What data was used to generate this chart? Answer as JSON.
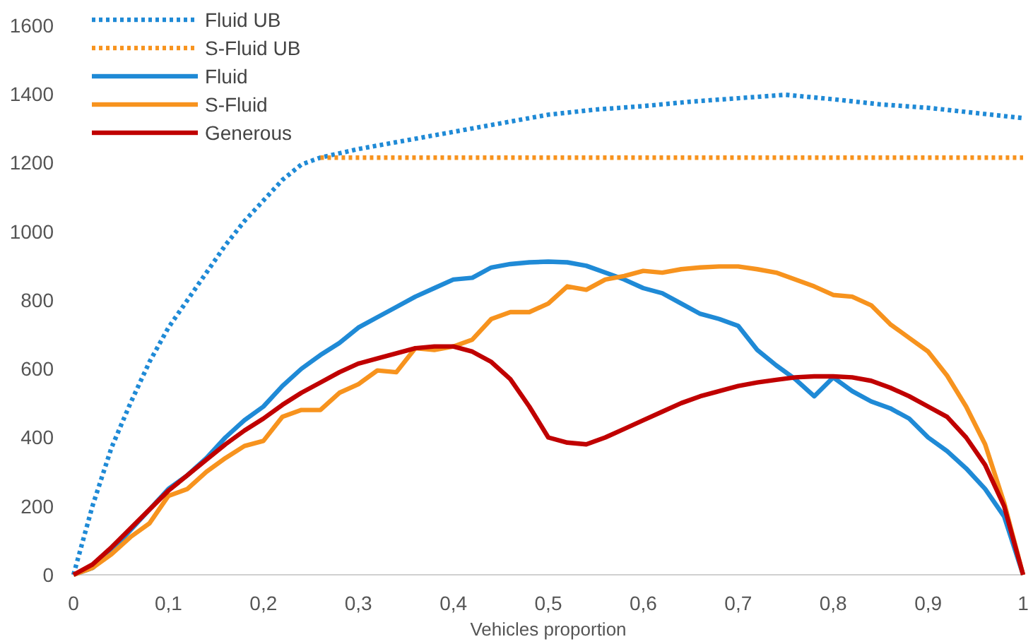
{
  "chart_data": {
    "type": "line",
    "xlabel": "Vehicles proportion",
    "x": [
      0,
      0.02,
      0.04,
      0.06,
      0.08,
      0.1,
      0.12,
      0.14,
      0.16,
      0.18,
      0.2,
      0.22,
      0.24,
      0.26,
      0.28,
      0.3,
      0.32,
      0.34,
      0.36,
      0.38,
      0.4,
      0.42,
      0.44,
      0.46,
      0.48,
      0.5,
      0.52,
      0.54,
      0.56,
      0.58,
      0.6,
      0.62,
      0.64,
      0.66,
      0.68,
      0.7,
      0.72,
      0.74,
      0.76,
      0.78,
      0.8,
      0.82,
      0.84,
      0.86,
      0.88,
      0.9,
      0.92,
      0.94,
      0.96,
      0.98,
      1
    ],
    "series": [
      {
        "name": "Fluid UB",
        "color": "#1f8ad6",
        "line_style": "dotted",
        "x": [
          0,
          0.02,
          0.04,
          0.06,
          0.08,
          0.1,
          0.12,
          0.14,
          0.16,
          0.18,
          0.2,
          0.22,
          0.24,
          0.26,
          0.3,
          0.35,
          0.4,
          0.45,
          0.5,
          0.55,
          0.6,
          0.65,
          0.7,
          0.75,
          0.8,
          0.85,
          0.9,
          0.95,
          1
        ],
        "values": [
          0,
          200,
          370,
          500,
          620,
          720,
          800,
          880,
          960,
          1030,
          1090,
          1150,
          1195,
          1215,
          1240,
          1265,
          1290,
          1315,
          1340,
          1355,
          1365,
          1378,
          1388,
          1398,
          1385,
          1370,
          1360,
          1345,
          1330
        ]
      },
      {
        "name": "S-Fluid UB",
        "color": "#f7931e",
        "line_style": "dotted",
        "x": [
          0.26,
          0.4,
          0.6,
          0.8,
          1
        ],
        "values": [
          1215,
          1215,
          1215,
          1215,
          1215
        ]
      },
      {
        "name": "Fluid",
        "color": "#1f8ad6",
        "line_style": "solid",
        "values": [
          0,
          20,
          70,
          130,
          190,
          250,
          290,
          340,
          400,
          450,
          490,
          550,
          600,
          640,
          675,
          720,
          750,
          780,
          810,
          835,
          860,
          865,
          895,
          905,
          910,
          912,
          910,
          900,
          880,
          860,
          835,
          820,
          790,
          760,
          745,
          725,
          655,
          610,
          570,
          520,
          575,
          535,
          505,
          485,
          455,
          400,
          360,
          310,
          250,
          170,
          0
        ]
      },
      {
        "name": "S-Fluid",
        "color": "#f7931e",
        "line_style": "solid",
        "values": [
          0,
          20,
          60,
          110,
          150,
          230,
          250,
          300,
          340,
          375,
          390,
          460,
          480,
          480,
          530,
          555,
          595,
          590,
          660,
          655,
          665,
          685,
          745,
          765,
          765,
          790,
          840,
          830,
          860,
          870,
          885,
          880,
          890,
          895,
          898,
          898,
          890,
          880,
          860,
          840,
          815,
          810,
          785,
          730,
          690,
          650,
          580,
          490,
          380,
          210,
          0
        ]
      },
      {
        "name": "Generous",
        "color": "#c00000",
        "line_style": "solid",
        "values": [
          0,
          30,
          80,
          135,
          190,
          245,
          290,
          335,
          380,
          420,
          455,
          495,
          530,
          560,
          590,
          615,
          630,
          645,
          660,
          665,
          665,
          650,
          620,
          570,
          490,
          400,
          385,
          380,
          400,
          425,
          450,
          475,
          500,
          520,
          535,
          550,
          560,
          568,
          575,
          578,
          578,
          575,
          565,
          545,
          520,
          490,
          460,
          400,
          320,
          200,
          0
        ]
      }
    ],
    "xlim": [
      0,
      1
    ],
    "xticks": [
      0,
      {
        "value": 0.1,
        "label": "0,1"
      },
      {
        "value": 0.2,
        "label": "0,2"
      },
      {
        "value": 0.3,
        "label": "0,3"
      },
      {
        "value": 0.4,
        "label": "0,4"
      },
      {
        "value": 0.5,
        "label": "0,5"
      },
      {
        "value": 0.6,
        "label": "0,6"
      },
      {
        "value": 0.7,
        "label": "0,7"
      },
      {
        "value": 0.8,
        "label": "0,8"
      },
      {
        "value": 0.9,
        "label": "0,9"
      },
      1
    ],
    "ylim": [
      0,
      1600
    ],
    "yticks": [
      0,
      200,
      400,
      600,
      800,
      1000,
      1200,
      1400,
      1600
    ],
    "legend": "top left",
    "marker": "none"
  }
}
